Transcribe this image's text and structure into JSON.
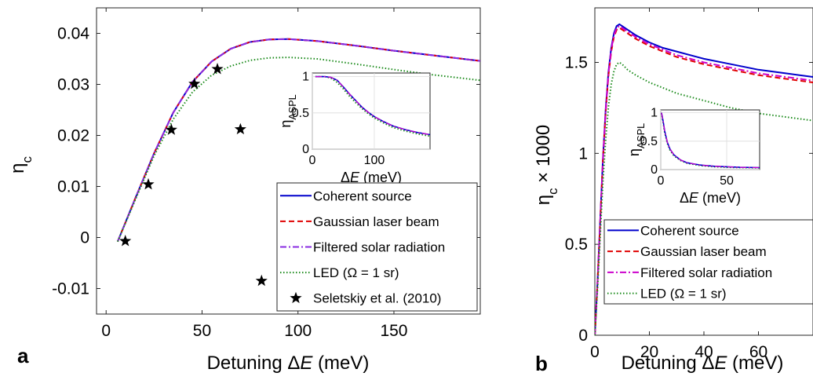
{
  "chart_data": [
    {
      "type": "line",
      "panel_label": "a",
      "xlabel": "Detuning ΔE (meV)",
      "ylabel": "η_c",
      "xlim": [
        -5,
        195
      ],
      "ylim": [
        -0.015,
        0.045
      ],
      "xticks": [
        "0",
        "50",
        "100",
        "150"
      ],
      "yticks": [
        "-0.01",
        "0",
        "0.01",
        "0.02",
        "0.03",
        "0.04"
      ],
      "grid": false,
      "legend_position": "bottom-right",
      "series": [
        {
          "name": "Coherent source",
          "color": "#0000cc",
          "dash": "solid",
          "x": [
            6,
            15,
            25,
            35,
            45,
            55,
            65,
            75,
            85,
            95,
            110,
            130,
            150,
            170,
            195
          ],
          "y": [
            -0.0008,
            0.0075,
            0.0165,
            0.0245,
            0.0305,
            0.0345,
            0.037,
            0.0383,
            0.0388,
            0.0389,
            0.0385,
            0.0376,
            0.0366,
            0.0357,
            0.0346
          ]
        },
        {
          "name": "Gaussian laser beam",
          "color": "#e00000",
          "dash": "dashed",
          "x": [
            6,
            15,
            25,
            35,
            45,
            55,
            65,
            75,
            85,
            95,
            110,
            130,
            150,
            170,
            195
          ],
          "y": [
            -0.0008,
            0.0075,
            0.0165,
            0.0245,
            0.0305,
            0.0345,
            0.037,
            0.0383,
            0.0388,
            0.0389,
            0.0385,
            0.0376,
            0.0366,
            0.0357,
            0.0346
          ]
        },
        {
          "name": "Filtered solar radiation",
          "color": "#8a2be2",
          "dash": "dashdot",
          "x": [
            6,
            15,
            25,
            35,
            45,
            55,
            65,
            75,
            85,
            95,
            110,
            130,
            150,
            170,
            195
          ],
          "y": [
            -0.0008,
            0.0075,
            0.0165,
            0.0245,
            0.0305,
            0.0345,
            0.037,
            0.0383,
            0.0388,
            0.0389,
            0.0385,
            0.0376,
            0.0366,
            0.0357,
            0.0346
          ]
        },
        {
          "name": "LED (Ω = 1 sr)",
          "color": "#1a8a1a",
          "dash": "dotted",
          "x": [
            6,
            15,
            25,
            35,
            45,
            55,
            65,
            75,
            85,
            95,
            110,
            130,
            150,
            170,
            195
          ],
          "y": [
            -0.0008,
            0.0072,
            0.016,
            0.0232,
            0.0285,
            0.0318,
            0.0336,
            0.0347,
            0.0352,
            0.0353,
            0.035,
            0.034,
            0.0329,
            0.0319,
            0.0308
          ]
        },
        {
          "name": "Seletskiy et al. (2010)",
          "color": "#000000",
          "marker": "star",
          "x": [
            10,
            22,
            34,
            46,
            58,
            70,
            81
          ],
          "y": [
            -0.0007,
            0.0104,
            0.0211,
            0.0301,
            0.033,
            0.0212,
            -0.0085
          ]
        }
      ],
      "inset": {
        "xlabel": "ΔE  (meV)",
        "ylabel": "η_ASPL",
        "xlim": [
          0,
          190
        ],
        "ylim": [
          0,
          1.05
        ],
        "xticks": [
          "0",
          "100"
        ],
        "yticks": [
          "0",
          "0.5",
          "1"
        ],
        "grid": true,
        "x": [
          5,
          20,
          30,
          40,
          50,
          60,
          70,
          80,
          90,
          100,
          115,
          130,
          150,
          170,
          190
        ],
        "y_main": [
          1,
          1,
          0.99,
          0.95,
          0.86,
          0.76,
          0.67,
          0.58,
          0.51,
          0.45,
          0.38,
          0.32,
          0.27,
          0.23,
          0.2
        ],
        "y_led": [
          1,
          1,
          0.98,
          0.92,
          0.83,
          0.73,
          0.64,
          0.56,
          0.49,
          0.43,
          0.36,
          0.3,
          0.25,
          0.21,
          0.18
        ]
      }
    },
    {
      "type": "line",
      "panel_label": "b",
      "xlabel": "Detuning ΔE (meV)",
      "ylabel": "η_c × 1000",
      "xlim": [
        0,
        80
      ],
      "ylim": [
        0,
        1.8
      ],
      "xticks": [
        "0",
        "20",
        "40",
        "60"
      ],
      "yticks": [
        "0",
        "0.5",
        "1",
        "1.5"
      ],
      "grid": false,
      "legend_position": "bottom-right",
      "series": [
        {
          "name": "Coherent source",
          "color": "#0000cc",
          "dash": "solid",
          "x": [
            0,
            1,
            2,
            3,
            4,
            5,
            6,
            7,
            8,
            9,
            10,
            12,
            15,
            20,
            25,
            30,
            40,
            50,
            60,
            70,
            80
          ],
          "y": [
            0,
            0.3,
            0.65,
            0.98,
            1.25,
            1.45,
            1.58,
            1.66,
            1.7,
            1.71,
            1.7,
            1.68,
            1.65,
            1.61,
            1.58,
            1.56,
            1.52,
            1.49,
            1.46,
            1.44,
            1.42
          ]
        },
        {
          "name": "Gaussian laser beam",
          "color": "#e00000",
          "dash": "dashed",
          "x": [
            0,
            1,
            2,
            3,
            4,
            5,
            6,
            7,
            8,
            9,
            10,
            12,
            15,
            20,
            25,
            30,
            40,
            50,
            60,
            70,
            80
          ],
          "y": [
            0,
            0.3,
            0.64,
            0.97,
            1.23,
            1.43,
            1.56,
            1.64,
            1.68,
            1.69,
            1.68,
            1.66,
            1.63,
            1.59,
            1.56,
            1.53,
            1.49,
            1.46,
            1.43,
            1.41,
            1.39
          ]
        },
        {
          "name": "Filtered solar radiation",
          "color": "#cc00cc",
          "dash": "dashdot",
          "x": [
            0,
            1,
            2,
            3,
            4,
            5,
            6,
            7,
            8,
            9,
            10,
            12,
            15,
            20,
            25,
            30,
            40,
            50,
            60,
            70,
            80
          ],
          "y": [
            0,
            0.3,
            0.64,
            0.97,
            1.24,
            1.44,
            1.57,
            1.65,
            1.69,
            1.7,
            1.69,
            1.67,
            1.64,
            1.6,
            1.57,
            1.54,
            1.5,
            1.47,
            1.44,
            1.42,
            1.4
          ]
        },
        {
          "name": "LED (Ω = 1 sr)",
          "color": "#1a8a1a",
          "dash": "dotted",
          "x": [
            0,
            1,
            2,
            3,
            4,
            5,
            6,
            7,
            8,
            9,
            10,
            12,
            15,
            20,
            25,
            30,
            40,
            50,
            60,
            70,
            80
          ],
          "y": [
            0,
            0.26,
            0.56,
            0.85,
            1.08,
            1.26,
            1.38,
            1.45,
            1.49,
            1.5,
            1.49,
            1.46,
            1.43,
            1.39,
            1.36,
            1.33,
            1.29,
            1.25,
            1.22,
            1.2,
            1.18
          ]
        }
      ],
      "inset": {
        "xlabel": "ΔE  (meV)",
        "ylabel": "η_ASPL",
        "xlim": [
          0,
          75
        ],
        "ylim": [
          0,
          1.05
        ],
        "xticks": [
          "0",
          "50"
        ],
        "yticks": [
          "0",
          "0.5",
          "1"
        ],
        "grid": true,
        "x": [
          0.5,
          1,
          2,
          3,
          5,
          7,
          10,
          15,
          20,
          30,
          40,
          50,
          60,
          75
        ],
        "y_main": [
          1,
          0.95,
          0.82,
          0.68,
          0.48,
          0.36,
          0.26,
          0.17,
          0.12,
          0.08,
          0.06,
          0.05,
          0.04,
          0.035
        ],
        "y_led": [
          1,
          0.93,
          0.79,
          0.65,
          0.46,
          0.34,
          0.24,
          0.16,
          0.11,
          0.07,
          0.05,
          0.04,
          0.035,
          0.03
        ]
      }
    }
  ]
}
